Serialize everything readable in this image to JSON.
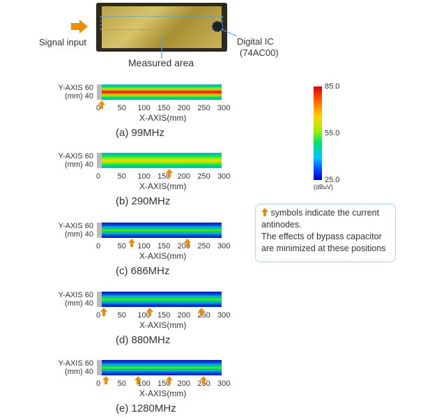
{
  "labels": {
    "signal_input": "Signal input",
    "digital_ic": "Digital IC",
    "digital_ic_part": "(74AC00)",
    "measured_area": "Measured area"
  },
  "axis": {
    "y_label_1": "Y-AXIS 60",
    "y_label_2": "(mm) 40",
    "x_label": "X-AXIS(mm)",
    "x_ticks": [
      "0",
      "50",
      "100",
      "150",
      "200",
      "250",
      "300"
    ]
  },
  "panels": [
    {
      "caption": "(a) 99MHz",
      "antinode_x_mm": [
        0
      ]
    },
    {
      "caption": "(b) 290MHz",
      "antinode_x_mm": [
        170
      ]
    },
    {
      "caption": "(c) 686MHz",
      "antinode_x_mm": [
        75,
        215
      ]
    },
    {
      "caption": "(d) 880MHz",
      "antinode_x_mm": [
        5,
        120,
        250
      ]
    },
    {
      "caption": "(e) 1280MHz",
      "antinode_x_mm": [
        10,
        90,
        170,
        255
      ]
    }
  ],
  "colorbar": {
    "max": "85.0",
    "mid": "55.0",
    "min": "25.0",
    "unit": "(dBuV)"
  },
  "note": {
    "line1": "symbols indicate the current antinodes.",
    "line2": "The effects of bypass capacitor are minimized at these positions"
  },
  "colors": {
    "arrow": "#f08c00",
    "dash": "#4aa3e6"
  }
}
